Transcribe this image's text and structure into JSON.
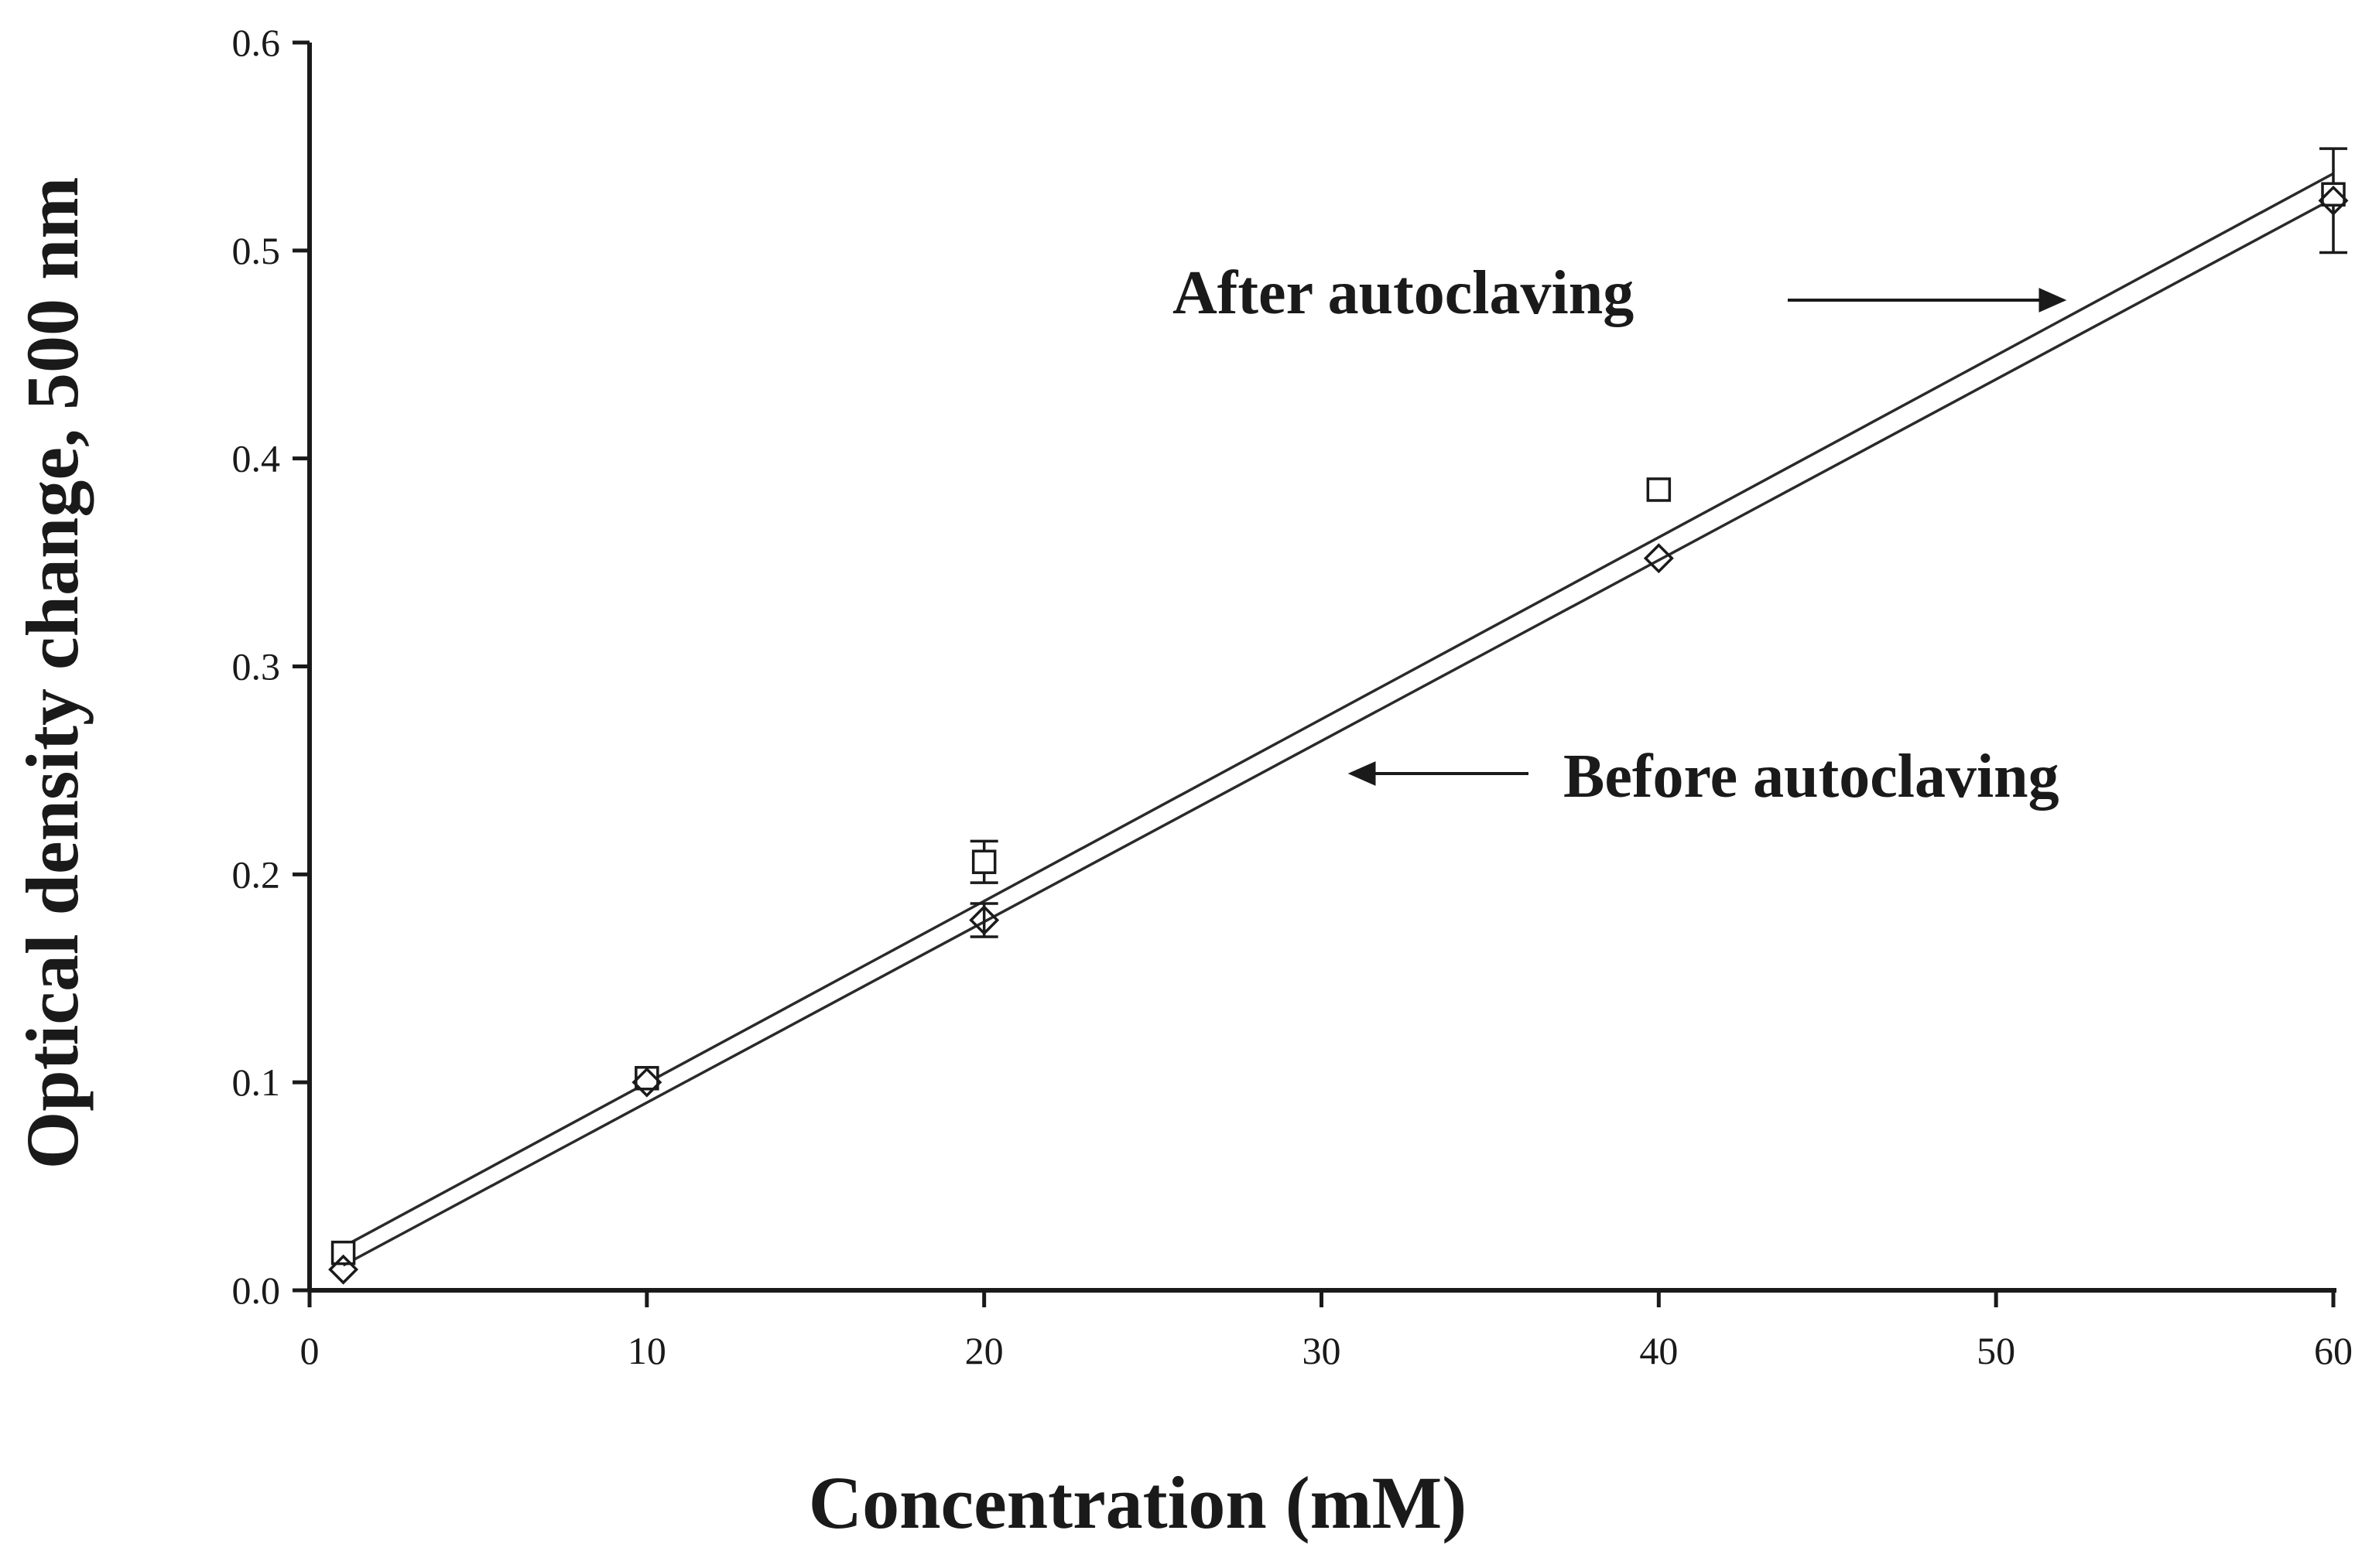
{
  "chart_data": {
    "type": "scatter",
    "title": "",
    "xlabel": "Concentration (mM)",
    "ylabel": "Optical density change, 500 nm",
    "xlim": [
      0,
      60
    ],
    "ylim": [
      0.0,
      0.6
    ],
    "x_ticks": [
      "0",
      "10",
      "20",
      "30",
      "40",
      "50",
      "60"
    ],
    "y_ticks": [
      "0.0",
      "0.1",
      "0.2",
      "0.3",
      "0.4",
      "0.5",
      "0.6"
    ],
    "grid": false,
    "legend": "none",
    "series": [
      {
        "marker": "square",
        "x": [
          1,
          10,
          20,
          40,
          60
        ],
        "y": [
          0.018,
          0.102,
          0.206,
          0.385,
          0.527
        ],
        "err": [
          0,
          0,
          0.01,
          0,
          0
        ],
        "fit": {
          "x": [
            1,
            60
          ],
          "y": [
            0.021,
            0.537
          ]
        }
      },
      {
        "marker": "diamond",
        "x": [
          1,
          10,
          20,
          40,
          60
        ],
        "y": [
          0.01,
          0.1,
          0.178,
          0.352,
          0.524
        ],
        "err": [
          0,
          0,
          0.008,
          0,
          0.025
        ],
        "fit": {
          "x": [
            1,
            60
          ],
          "y": [
            0.012,
            0.525
          ]
        }
      }
    ],
    "annotations": [
      {
        "text": "After autoclaving",
        "arrow_to": [
          52,
          0.478
        ]
      },
      {
        "text": "Before autoclaving",
        "arrow_to": [
          29.5,
          0.25
        ]
      }
    ]
  }
}
